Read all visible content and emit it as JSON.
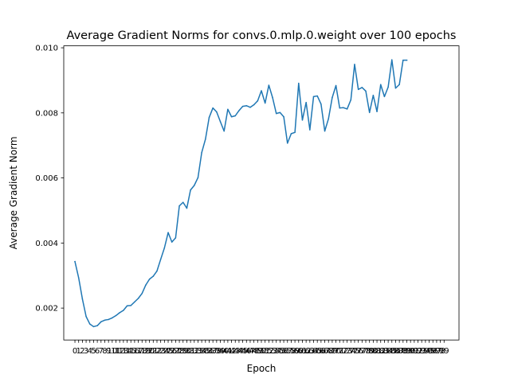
{
  "chart_data": {
    "type": "line",
    "title": "Average Gradient Norms for convs.0.mlp.0.weight over 100 epochs",
    "xlabel": "Epoch",
    "ylabel": "Average Gradient Norm",
    "xlim": [
      -3,
      103
    ],
    "ylim": [
      0.00102,
      0.01006
    ],
    "grid": false,
    "line_color": "#1f77b4",
    "x_ticks": [
      0,
      1,
      2,
      3,
      4,
      5,
      6,
      7,
      8,
      9,
      10,
      11,
      12,
      13,
      14,
      15,
      16,
      17,
      18,
      19,
      20,
      21,
      22,
      23,
      24,
      25,
      26,
      27,
      28,
      29,
      30,
      31,
      32,
      33,
      34,
      35,
      36,
      37,
      38,
      39,
      40,
      41,
      42,
      43,
      44,
      45,
      46,
      47,
      48,
      49,
      50,
      51,
      52,
      53,
      54,
      55,
      56,
      57,
      58,
      59,
      60,
      61,
      62,
      63,
      64,
      65,
      66,
      67,
      68,
      69,
      70,
      71,
      72,
      73,
      74,
      75,
      76,
      77,
      78,
      79,
      80,
      81,
      82,
      83,
      84,
      85,
      86,
      87,
      88,
      89,
      90,
      91,
      92,
      93,
      94,
      95,
      96,
      97,
      98,
      99
    ],
    "y_ticks": [
      {
        "value": 0.002,
        "label": "0.002"
      },
      {
        "value": 0.004,
        "label": "0.004"
      },
      {
        "value": 0.006,
        "label": "0.006"
      },
      {
        "value": 0.008,
        "label": "0.008"
      },
      {
        "value": 0.01,
        "label": "0.010"
      }
    ],
    "series": [
      {
        "x": [
          0,
          1,
          2,
          3,
          4,
          5,
          6,
          7,
          8,
          9,
          10,
          11,
          12,
          13,
          14,
          15,
          16,
          17,
          18,
          19,
          20,
          21,
          22,
          23,
          24,
          25,
          26,
          27,
          28,
          29,
          30,
          31,
          32,
          33,
          34,
          35,
          36,
          37,
          38,
          39,
          40,
          41,
          42,
          43,
          44,
          45,
          46,
          47,
          48,
          49,
          50,
          51,
          52,
          53,
          54,
          55,
          56,
          57,
          58,
          59,
          60,
          61,
          62,
          63,
          64,
          65,
          66,
          67,
          68,
          69,
          70,
          71,
          72,
          73,
          74,
          75,
          76,
          77,
          78,
          79,
          80,
          81,
          82,
          83,
          84,
          85,
          86,
          87,
          88,
          89
        ],
        "values": [
          0.00343,
          0.00293,
          0.00228,
          0.00174,
          0.00151,
          0.00143,
          0.00146,
          0.00158,
          0.00163,
          0.00165,
          0.0017,
          0.00177,
          0.00186,
          0.00193,
          0.00207,
          0.00208,
          0.00219,
          0.0023,
          0.00245,
          0.00271,
          0.00289,
          0.00298,
          0.00314,
          0.0035,
          0.00385,
          0.00432,
          0.00403,
          0.00416,
          0.00514,
          0.00525,
          0.00507,
          0.00563,
          0.00577,
          0.00601,
          0.00678,
          0.00719,
          0.00786,
          0.00815,
          0.00803,
          0.00773,
          0.00744,
          0.00811,
          0.00788,
          0.00791,
          0.00807,
          0.0082,
          0.00822,
          0.00817,
          0.00825,
          0.00837,
          0.00868,
          0.0083,
          0.00885,
          0.00847,
          0.00798,
          0.00801,
          0.00788,
          0.00707,
          0.00736,
          0.0074,
          0.00891,
          0.00778,
          0.00832,
          0.00748,
          0.0085,
          0.00852,
          0.00827,
          0.00744,
          0.00782,
          0.00847,
          0.00884,
          0.00815,
          0.00816,
          0.00812,
          0.0084,
          0.00949,
          0.00872,
          0.00878,
          0.00867,
          0.00801,
          0.00854,
          0.00804,
          0.00887,
          0.0085,
          0.00879,
          0.00963,
          0.00876,
          0.00887,
          0.00962,
          0.00962
        ]
      }
    ]
  }
}
